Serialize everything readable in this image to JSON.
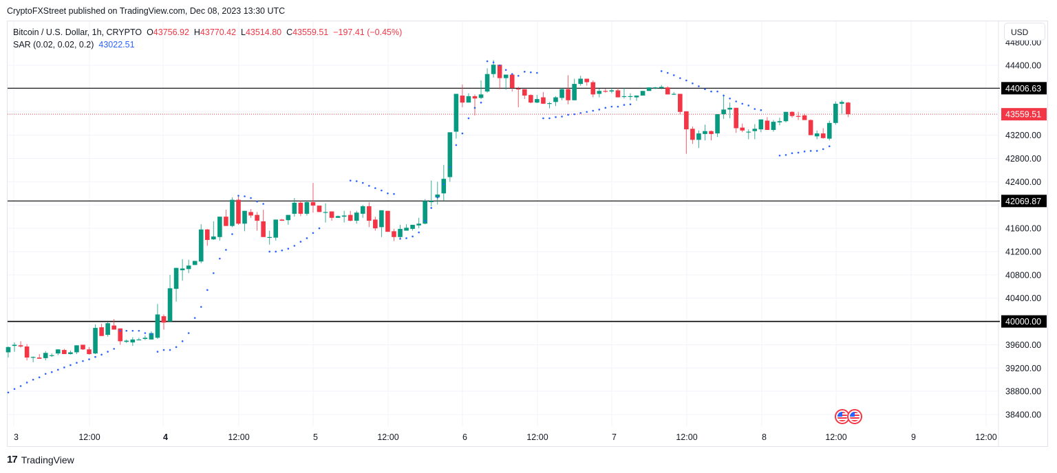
{
  "header": {
    "published": "CryptoFXStreet published on TradingView.com, Dec 08, 2023 13:30 UTC"
  },
  "legend": {
    "symbol": "Bitcoin / U.S. Dollar, 1h, CRYPTO",
    "open_label": "O",
    "open": "43756.92",
    "high_label": "H",
    "high": "43770.42",
    "low_label": "L",
    "low": "43514.80",
    "close_label": "C",
    "close": "43559.51",
    "change": "−197.41 (−0.45%)",
    "sar_label": "SAR (0.02, 0.02, 0.2)",
    "sar_value": "43022.51"
  },
  "currency_button": "USD",
  "footer": {
    "brand": "TradingView",
    "logo": "17"
  },
  "colors": {
    "up": "#089981",
    "down": "#f23645",
    "sar": "#2962ff",
    "grid": "#f0f3fa",
    "hline": "#000000",
    "price_line": "#f23645"
  },
  "chart_data": {
    "type": "candlestick",
    "title": "Bitcoin / U.S. Dollar, 1h, CRYPTO",
    "xlabel": "",
    "ylabel": "USD",
    "ylim": [
      38200,
      44700
    ],
    "grid": true,
    "y_ticks": [
      "44400.00",
      "44000.00",
      "43600.00",
      "43200.00",
      "42800.00",
      "42400.00",
      "42000.00",
      "41600.00",
      "41200.00",
      "40800.00",
      "40400.00",
      "40000.00",
      "39600.00",
      "39200.00",
      "38800.00",
      "38400.00"
    ],
    "x_ticks": [
      {
        "label": "3",
        "x": 20,
        "bold": false
      },
      {
        "label": "12:00",
        "x": 130,
        "bold": false
      },
      {
        "label": "4",
        "x": 237,
        "bold": true
      },
      {
        "label": "12:00",
        "x": 347,
        "bold": false
      },
      {
        "label": "5",
        "x": 455,
        "bold": false
      },
      {
        "label": "12:00",
        "x": 564,
        "bold": false
      },
      {
        "label": "6",
        "x": 672,
        "bold": false
      },
      {
        "label": "12:00",
        "x": 781,
        "bold": false
      },
      {
        "label": "7",
        "x": 889,
        "bold": false
      },
      {
        "label": "12:00",
        "x": 998,
        "bold": false
      },
      {
        "label": "8",
        "x": 1107,
        "bold": false
      },
      {
        "label": "12:00",
        "x": 1215,
        "bold": false
      },
      {
        "label": "9",
        "x": 1324,
        "bold": false
      },
      {
        "label": "12:00",
        "x": 1433,
        "bold": false
      }
    ],
    "horizontal_lines": [
      {
        "price": 44006.63,
        "label": "44006.63"
      },
      {
        "price": 42069.87,
        "label": "42069.87"
      },
      {
        "price": 40000.0,
        "label": "40000.00"
      }
    ],
    "last_price": {
      "price": 43559.51,
      "label": "43559.51"
    },
    "candles": [
      [
        39470,
        39570,
        39380,
        39560
      ],
      [
        39580,
        39640,
        39480,
        39600
      ],
      [
        39590,
        39660,
        39550,
        39570
      ],
      [
        39570,
        39610,
        39330,
        39380
      ],
      [
        39390,
        39400,
        39300,
        39390
      ],
      [
        39380,
        39440,
        39360,
        39360
      ],
      [
        39370,
        39490,
        39330,
        39460
      ],
      [
        39420,
        39450,
        39390,
        39420
      ],
      [
        39450,
        39480,
        39420,
        39520
      ],
      [
        39510,
        39530,
        39440,
        39440
      ],
      [
        39440,
        39500,
        39430,
        39470
      ],
      [
        39470,
        39540,
        39440,
        39590
      ],
      [
        39600,
        39600,
        39510,
        39520
      ],
      [
        39520,
        39560,
        39430,
        39440
      ],
      [
        39450,
        39950,
        39440,
        39890
      ],
      [
        39900,
        39960,
        39750,
        39750
      ],
      [
        39770,
        40000,
        39740,
        39970
      ],
      [
        39930,
        40040,
        39880,
        39860
      ],
      [
        39880,
        39880,
        39600,
        39660
      ],
      [
        39650,
        39690,
        39630,
        39670
      ],
      [
        39640,
        39730,
        39580,
        39690
      ],
      [
        39690,
        39720,
        39720,
        39690
      ],
      [
        39700,
        39760,
        39680,
        39720
      ],
      [
        39690,
        39830,
        39690,
        39800
      ],
      [
        39720,
        40300,
        39700,
        40120
      ],
      [
        40090,
        40120,
        39860,
        39980
      ],
      [
        40000,
        40800,
        40000,
        40570
      ],
      [
        40560,
        40800,
        40340,
        40920
      ],
      [
        40880,
        41070,
        40700,
        40910
      ],
      [
        40900,
        41060,
        40830,
        40960
      ],
      [
        40970,
        41000,
        40970,
        41040
      ],
      [
        41030,
        41670,
        41000,
        41580
      ],
      [
        41580,
        41590,
        41300,
        41400
      ],
      [
        41410,
        41720,
        41400,
        41460
      ],
      [
        41450,
        41700,
        41390,
        41800
      ],
      [
        41800,
        41920,
        41640,
        41640
      ],
      [
        41640,
        42130,
        41620,
        42090
      ],
      [
        42090,
        42150,
        41660,
        41680
      ],
      [
        41680,
        41900,
        41550,
        41900
      ],
      [
        41880,
        41930,
        41780,
        41820
      ],
      [
        41830,
        41880,
        41560,
        41730
      ],
      [
        41720,
        41920,
        41700,
        41450
      ],
      [
        41450,
        41560,
        41320,
        41450
      ],
      [
        41440,
        41650,
        41390,
        41750
      ],
      [
        41750,
        41760,
        41740,
        41730
      ],
      [
        41740,
        41830,
        41660,
        41830
      ],
      [
        41850,
        42120,
        41800,
        42040
      ],
      [
        42040,
        42080,
        41810,
        41850
      ],
      [
        41850,
        42070,
        41820,
        42050
      ],
      [
        42050,
        42380,
        41870,
        41990
      ],
      [
        41990,
        41990,
        41930,
        41880
      ],
      [
        41880,
        42030,
        41700,
        41880
      ],
      [
        41890,
        41800,
        41730,
        41780
      ],
      [
        41780,
        41820,
        41790,
        41810
      ],
      [
        41800,
        41900,
        41700,
        41820
      ],
      [
        41830,
        41900,
        41720,
        41730
      ],
      [
        41730,
        41900,
        41680,
        41870
      ],
      [
        41850,
        42000,
        41780,
        41980
      ],
      [
        41980,
        42050,
        41620,
        41730
      ],
      [
        41750,
        41800,
        41560,
        41600
      ],
      [
        41620,
        41890,
        41450,
        41910
      ],
      [
        41900,
        41900,
        41540,
        41540
      ],
      [
        41550,
        41590,
        41380,
        41450
      ],
      [
        41450,
        41660,
        41420,
        41590
      ],
      [
        41560,
        41670,
        41590,
        41610
      ],
      [
        41590,
        41660,
        41560,
        41660
      ],
      [
        41650,
        41780,
        41600,
        41680
      ],
      [
        41680,
        42100,
        41670,
        42070
      ],
      [
        42050,
        42420,
        41980,
        42070
      ],
      [
        42130,
        42400,
        42010,
        42180
      ],
      [
        42200,
        42690,
        42070,
        42450
      ],
      [
        42480,
        43200,
        42400,
        43250
      ],
      [
        43260,
        43900,
        43140,
        43910
      ],
      [
        43880,
        44070,
        43680,
        43760
      ],
      [
        43760,
        43920,
        43840,
        43870
      ],
      [
        43870,
        43900,
        43540,
        43830
      ],
      [
        43840,
        44140,
        43820,
        43900
      ],
      [
        43950,
        44350,
        43930,
        44250
      ],
      [
        44250,
        44490,
        44190,
        44410
      ],
      [
        44410,
        44410,
        43990,
        44180
      ],
      [
        44180,
        44240,
        43980,
        44240
      ],
      [
        44240,
        44250,
        43950,
        44010
      ],
      [
        44000,
        44030,
        43680,
        43990
      ],
      [
        43990,
        43980,
        43820,
        43880
      ],
      [
        43890,
        43900,
        43750,
        43760
      ],
      [
        43760,
        43890,
        43750,
        43820
      ],
      [
        43850,
        43940,
        43780,
        43740
      ],
      [
        43740,
        43770,
        43660,
        43750
      ],
      [
        43770,
        43870,
        43700,
        43850
      ],
      [
        43840,
        44010,
        43800,
        43990
      ],
      [
        43990,
        44230,
        43730,
        43800
      ],
      [
        43800,
        44170,
        43850,
        44080
      ],
      [
        44080,
        44220,
        44050,
        44170
      ],
      [
        44170,
        44060,
        44050,
        44110
      ],
      [
        44110,
        44140,
        43850,
        43900
      ],
      [
        43910,
        44000,
        43850,
        43960
      ],
      [
        43960,
        44000,
        43930,
        43950
      ],
      [
        43950,
        44010,
        43920,
        43970
      ],
      [
        43970,
        44010,
        43900,
        43850
      ],
      [
        43860,
        44010,
        43830,
        43870
      ],
      [
        43870,
        43920,
        43800,
        43870
      ],
      [
        43850,
        43870,
        43790,
        43880
      ],
      [
        43880,
        43960,
        43880,
        43960
      ],
      [
        43960,
        44000,
        43960,
        44020
      ],
      [
        44020,
        44030,
        43990,
        44020
      ],
      [
        44010,
        44060,
        43990,
        44030
      ],
      [
        44020,
        44040,
        43950,
        43900
      ],
      [
        43900,
        43940,
        43890,
        43910
      ],
      [
        43910,
        43910,
        43560,
        43600
      ],
      [
        43610,
        43500,
        42880,
        43300
      ],
      [
        43310,
        43350,
        43050,
        43120
      ],
      [
        43120,
        43280,
        42980,
        43230
      ],
      [
        43220,
        43380,
        43110,
        43270
      ],
      [
        43270,
        43280,
        43110,
        43220
      ],
      [
        43230,
        43550,
        43170,
        43560
      ],
      [
        43560,
        43900,
        43480,
        43640
      ],
      [
        43640,
        43760,
        43490,
        43670
      ],
      [
        43670,
        43670,
        43240,
        43320
      ],
      [
        43330,
        43400,
        43250,
        43280
      ],
      [
        43260,
        43300,
        43130,
        43260
      ],
      [
        43270,
        43390,
        43130,
        43310
      ],
      [
        43300,
        43430,
        43250,
        43470
      ],
      [
        43450,
        43510,
        43300,
        43290
      ],
      [
        43290,
        43460,
        43260,
        43430
      ],
      [
        43420,
        43500,
        43370,
        43440
      ],
      [
        43440,
        43560,
        43420,
        43600
      ],
      [
        43600,
        43610,
        43500,
        43530
      ],
      [
        43530,
        43600,
        43460,
        43520
      ],
      [
        43540,
        43570,
        43490,
        43460
      ],
      [
        43460,
        43470,
        43250,
        43200
      ],
      [
        43180,
        43280,
        43130,
        43230
      ],
      [
        43230,
        43320,
        43140,
        43150
      ],
      [
        43140,
        43450,
        43110,
        43410
      ],
      [
        43410,
        43780,
        43380,
        43740
      ],
      [
        43740,
        43800,
        43570,
        43770
      ],
      [
        43760,
        43770,
        43510,
        43560
      ]
    ],
    "sar": [
      [
        0,
        38780
      ],
      [
        1,
        38840
      ],
      [
        2,
        38890
      ],
      [
        3,
        38950
      ],
      [
        4,
        39000
      ],
      [
        5,
        39040
      ],
      [
        6,
        39100
      ],
      [
        7,
        39130
      ],
      [
        8,
        39170
      ],
      [
        9,
        39210
      ],
      [
        10,
        39250
      ],
      [
        11,
        39290
      ],
      [
        12,
        39320
      ],
      [
        13,
        39350
      ],
      [
        14,
        39390
      ],
      [
        15,
        39430
      ],
      [
        16,
        39480
      ],
      [
        17,
        39530
      ],
      [
        18,
        39840
      ],
      [
        19,
        39840
      ],
      [
        20,
        39840
      ],
      [
        21,
        39840
      ],
      [
        22,
        39800
      ],
      [
        23,
        39780
      ],
      [
        24,
        39480
      ],
      [
        25,
        39510
      ],
      [
        26,
        39510
      ],
      [
        27,
        39560
      ],
      [
        28,
        39660
      ],
      [
        29,
        39800
      ],
      [
        30,
        40060
      ],
      [
        31,
        40250
      ],
      [
        32,
        40540
      ],
      [
        33,
        40830
      ],
      [
        34,
        41080
      ],
      [
        35,
        41230
      ],
      [
        36,
        41500
      ],
      [
        37,
        42160
      ],
      [
        38,
        42150
      ],
      [
        39,
        42120
      ],
      [
        40,
        42060
      ],
      [
        41,
        42020
      ],
      [
        42,
        41200
      ],
      [
        43,
        41200
      ],
      [
        44,
        41220
      ],
      [
        45,
        41250
      ],
      [
        46,
        41300
      ],
      [
        47,
        41370
      ],
      [
        48,
        41430
      ],
      [
        49,
        41520
      ],
      [
        50,
        41600
      ],
      [
        55,
        42420
      ],
      [
        56,
        42410
      ],
      [
        57,
        42380
      ],
      [
        58,
        42330
      ],
      [
        59,
        42290
      ],
      [
        60,
        42250
      ],
      [
        61,
        42200
      ],
      [
        62,
        42190
      ],
      [
        63,
        41420
      ],
      [
        64,
        41430
      ],
      [
        65,
        41460
      ],
      [
        66,
        41530
      ],
      [
        67,
        41730
      ],
      [
        68,
        41950
      ],
      [
        69,
        42130
      ],
      [
        70,
        42360
      ],
      [
        71,
        42650
      ],
      [
        72,
        43030
      ],
      [
        73,
        43230
      ],
      [
        74,
        43490
      ],
      [
        75,
        43670
      ],
      [
        76,
        43760
      ],
      [
        77,
        44470
      ],
      [
        78,
        44450
      ],
      [
        79,
        44400
      ],
      [
        80,
        44320
      ],
      [
        81,
        44250
      ],
      [
        82,
        44220
      ],
      [
        83,
        44290
      ],
      [
        84,
        44280
      ],
      [
        85,
        44270
      ],
      [
        86,
        43490
      ],
      [
        87,
        43490
      ],
      [
        88,
        43510
      ],
      [
        89,
        43520
      ],
      [
        90,
        43550
      ],
      [
        91,
        43560
      ],
      [
        92,
        43580
      ],
      [
        93,
        43600
      ],
      [
        94,
        43620
      ],
      [
        95,
        43640
      ],
      [
        96,
        43670
      ],
      [
        97,
        43690
      ],
      [
        98,
        43690
      ],
      [
        99,
        43720
      ],
      [
        100,
        43730
      ],
      [
        105,
        44300
      ],
      [
        106,
        44270
      ],
      [
        107,
        44230
      ],
      [
        108,
        44180
      ],
      [
        109,
        44140
      ],
      [
        110,
        44090
      ],
      [
        111,
        44040
      ],
      [
        112,
        43990
      ],
      [
        113,
        43950
      ],
      [
        114,
        43950
      ],
      [
        115,
        43880
      ],
      [
        116,
        43830
      ],
      [
        117,
        43780
      ],
      [
        118,
        43740
      ],
      [
        119,
        43710
      ],
      [
        120,
        43650
      ],
      [
        121,
        43630
      ],
      [
        124,
        42850
      ],
      [
        125,
        42860
      ],
      [
        126,
        42890
      ],
      [
        127,
        42900
      ],
      [
        128,
        42920
      ],
      [
        129,
        42930
      ],
      [
        130,
        42930
      ],
      [
        131,
        42960
      ],
      [
        132,
        43010
      ]
    ],
    "sar_start_index_offset": 0
  }
}
